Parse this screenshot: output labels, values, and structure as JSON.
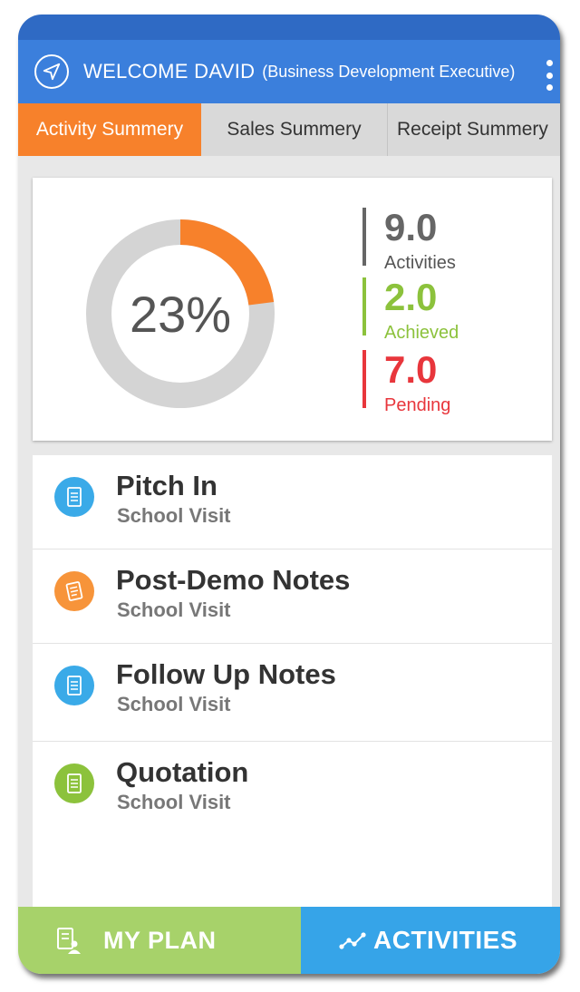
{
  "header": {
    "title": "WELCOME DAVID",
    "subtitle": "(Business Development Executive)"
  },
  "tabs": [
    {
      "label": "Activity Summery",
      "active": true
    },
    {
      "label": "Sales Summery",
      "active": false
    },
    {
      "label": "Receipt Summery",
      "active": false
    }
  ],
  "summary": {
    "percent_label": "23%",
    "progress_fraction": 0.23,
    "stats": [
      {
        "value": "9.0",
        "label": "Activities",
        "color": "#666666"
      },
      {
        "value": "2.0",
        "label": "Achieved",
        "color": "#8cc23c"
      },
      {
        "value": "7.0",
        "label": "Pending",
        "color": "#e8363c"
      }
    ]
  },
  "items": [
    {
      "title": "Pitch In",
      "subtitle": "School Visit",
      "icon": "document-icon",
      "color": "#3aaae8"
    },
    {
      "title": "Post-Demo Notes",
      "subtitle": "School Visit",
      "icon": "notepad-icon",
      "color": "#f7943a"
    },
    {
      "title": "Follow Up Notes",
      "subtitle": "School Visit",
      "icon": "document-icon",
      "color": "#3aaae8"
    },
    {
      "title": "Quotation",
      "subtitle": "School Visit",
      "icon": "document-icon",
      "color": "#8cc23c"
    }
  ],
  "bottom": {
    "plan_label": "MY PLAN",
    "activities_label": "ACTIVITIES"
  },
  "colors": {
    "header": "#3b7fdc",
    "accent": "#f7812b",
    "donut_track": "#d4d4d4"
  }
}
